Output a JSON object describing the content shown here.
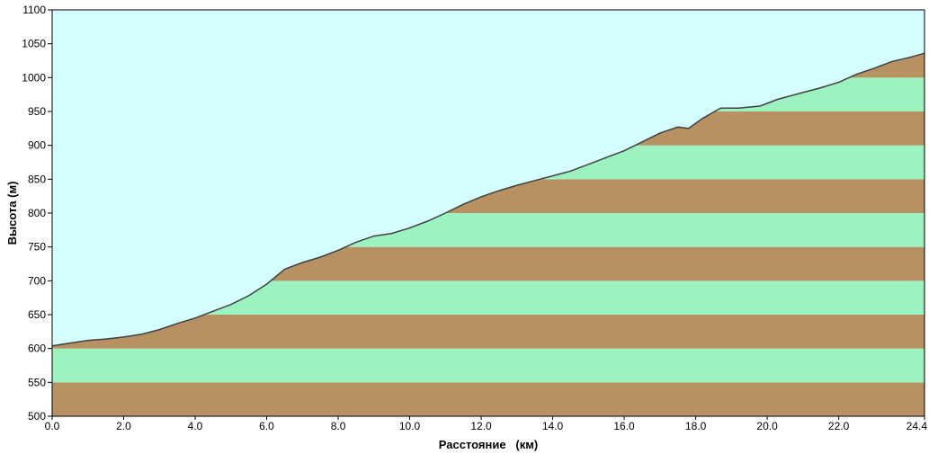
{
  "chart_data": {
    "type": "area",
    "title": "",
    "xlabel": "Расстояние   (км)",
    "ylabel": "Высота (м)",
    "xlim": [
      0,
      24.4
    ],
    "ylim": [
      500,
      1100
    ],
    "x_ticks": [
      "0.0",
      "2.0",
      "4.0",
      "6.0",
      "8.0",
      "10.0",
      "12.0",
      "14.0",
      "16.0",
      "18.0",
      "20.0",
      "22.0",
      "24.4"
    ],
    "y_ticks": [
      "500",
      "550",
      "600",
      "650",
      "700",
      "750",
      "800",
      "850",
      "900",
      "950",
      "1000",
      "1050",
      "1100"
    ],
    "band_step": 50,
    "colors": {
      "sky": "#d4feff",
      "band_brown": "#b89163",
      "band_green": "#9cf3bf",
      "profile_line": "#404040"
    },
    "series": [
      {
        "x": [
          0.0,
          0.5,
          1.0,
          1.5,
          2.0,
          2.5,
          3.0,
          3.5,
          4.0,
          4.5,
          5.0,
          5.5,
          6.0,
          6.5,
          7.0,
          7.5,
          8.0,
          8.5,
          9.0,
          9.5,
          10.0,
          10.5,
          11.0,
          11.5,
          12.0,
          12.5,
          13.0,
          13.5,
          14.0,
          14.5,
          15.0,
          15.5,
          16.0,
          16.5,
          17.0,
          17.5,
          17.8,
          18.2,
          18.7,
          19.2,
          19.8,
          20.3,
          21.0,
          21.5,
          22.0,
          22.5,
          23.0,
          23.5,
          24.0,
          24.4
        ],
        "y": [
          604,
          608,
          612,
          614,
          617,
          621,
          628,
          637,
          645,
          655,
          665,
          678,
          695,
          717,
          727,
          735,
          745,
          757,
          766,
          770,
          778,
          788,
          800,
          813,
          824,
          833,
          841,
          848,
          855,
          862,
          872,
          882,
          892,
          905,
          918,
          927,
          925,
          940,
          955,
          955,
          958,
          968,
          978,
          985,
          993,
          1005,
          1014,
          1024,
          1030,
          1036
        ]
      }
    ]
  }
}
